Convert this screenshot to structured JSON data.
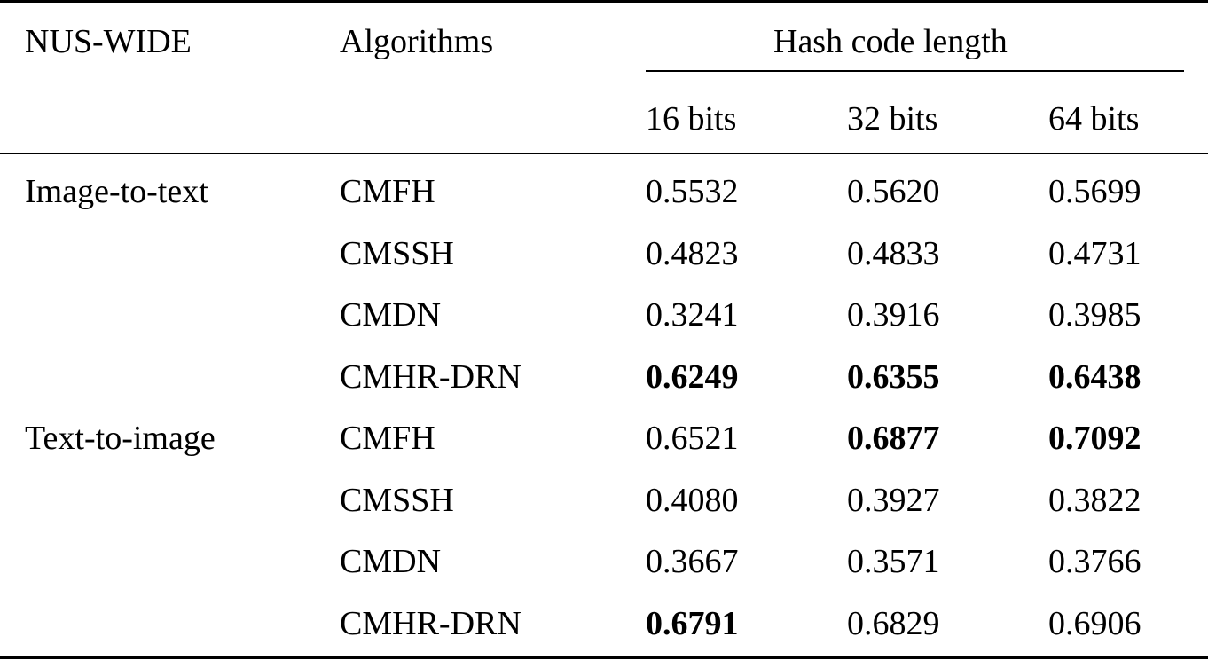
{
  "table": {
    "header": {
      "dataset": "NUS-WIDE",
      "algorithms": "Algorithms",
      "group": "Hash code length",
      "bits": [
        "16 bits",
        "32 bits",
        "64 bits"
      ]
    },
    "rows": [
      {
        "task": "Image-to-text",
        "algorithm": "CMFH",
        "values": [
          "0.5532",
          "0.5620",
          "0.5699"
        ],
        "bold": [
          false,
          false,
          false
        ]
      },
      {
        "task": "",
        "algorithm": "CMSSH",
        "values": [
          "0.4823",
          "0.4833",
          "0.4731"
        ],
        "bold": [
          false,
          false,
          false
        ]
      },
      {
        "task": "",
        "algorithm": "CMDN",
        "values": [
          "0.3241",
          "0.3916",
          "0.3985"
        ],
        "bold": [
          false,
          false,
          false
        ]
      },
      {
        "task": "",
        "algorithm": "CMHR-DRN",
        "values": [
          "0.6249",
          "0.6355",
          "0.6438"
        ],
        "bold": [
          true,
          true,
          true
        ]
      },
      {
        "task": "Text-to-image",
        "algorithm": "CMFH",
        "values": [
          "0.6521",
          "0.6877",
          "0.7092"
        ],
        "bold": [
          false,
          true,
          true
        ]
      },
      {
        "task": "",
        "algorithm": "CMSSH",
        "values": [
          "0.4080",
          "0.3927",
          "0.3822"
        ],
        "bold": [
          false,
          false,
          false
        ]
      },
      {
        "task": "",
        "algorithm": "CMDN",
        "values": [
          "0.3667",
          "0.3571",
          "0.3766"
        ],
        "bold": [
          false,
          false,
          false
        ]
      },
      {
        "task": "",
        "algorithm": "CMHR-DRN",
        "values": [
          "0.6791",
          "0.6829",
          "0.6906"
        ],
        "bold": [
          true,
          false,
          false
        ]
      }
    ]
  }
}
